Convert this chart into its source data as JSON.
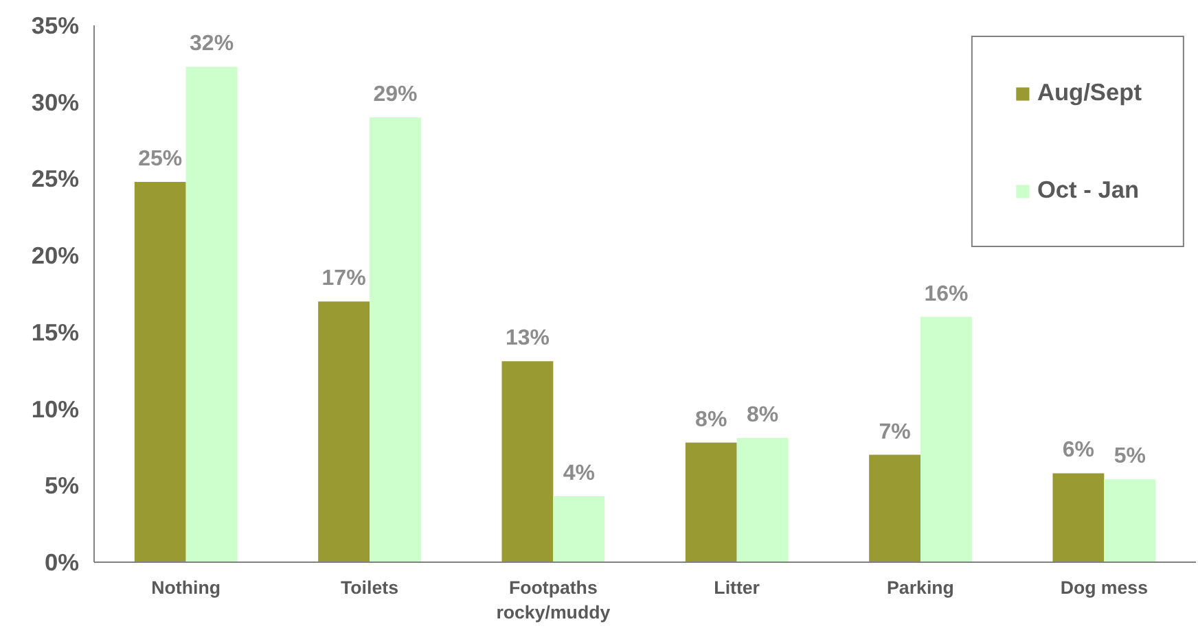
{
  "chart_data": {
    "type": "bar",
    "categories": [
      "Nothing",
      "Toilets",
      "Footpaths\nrocky/muddy",
      "Litter",
      "Parking",
      "Dog mess"
    ],
    "series": [
      {
        "name": "Aug/Sept",
        "color": "#9a9a32",
        "values": [
          24.8,
          17.0,
          13.1,
          7.8,
          7.0,
          5.8
        ],
        "value_labels": [
          "25%",
          "17%",
          "13%",
          "8%",
          "7%",
          "6%"
        ]
      },
      {
        "name": "Oct - Jan",
        "color": "#ccffcc",
        "values": [
          32.3,
          29.0,
          4.3,
          8.1,
          16.0,
          5.4
        ],
        "value_labels": [
          "32%",
          "29%",
          "4%",
          "8%",
          "16%",
          "5%"
        ]
      }
    ],
    "ylim": [
      0,
      35
    ],
    "yticks": [
      {
        "value": 0,
        "label": "0%"
      },
      {
        "value": 5,
        "label": "5%"
      },
      {
        "value": 10,
        "label": "10%"
      },
      {
        "value": 15,
        "label": "15%"
      },
      {
        "value": 20,
        "label": "20%"
      },
      {
        "value": 25,
        "label": "25%"
      },
      {
        "value": 30,
        "label": "30%"
      },
      {
        "value": 35,
        "label": "35%"
      }
    ],
    "grid": false,
    "legend": "top right"
  }
}
